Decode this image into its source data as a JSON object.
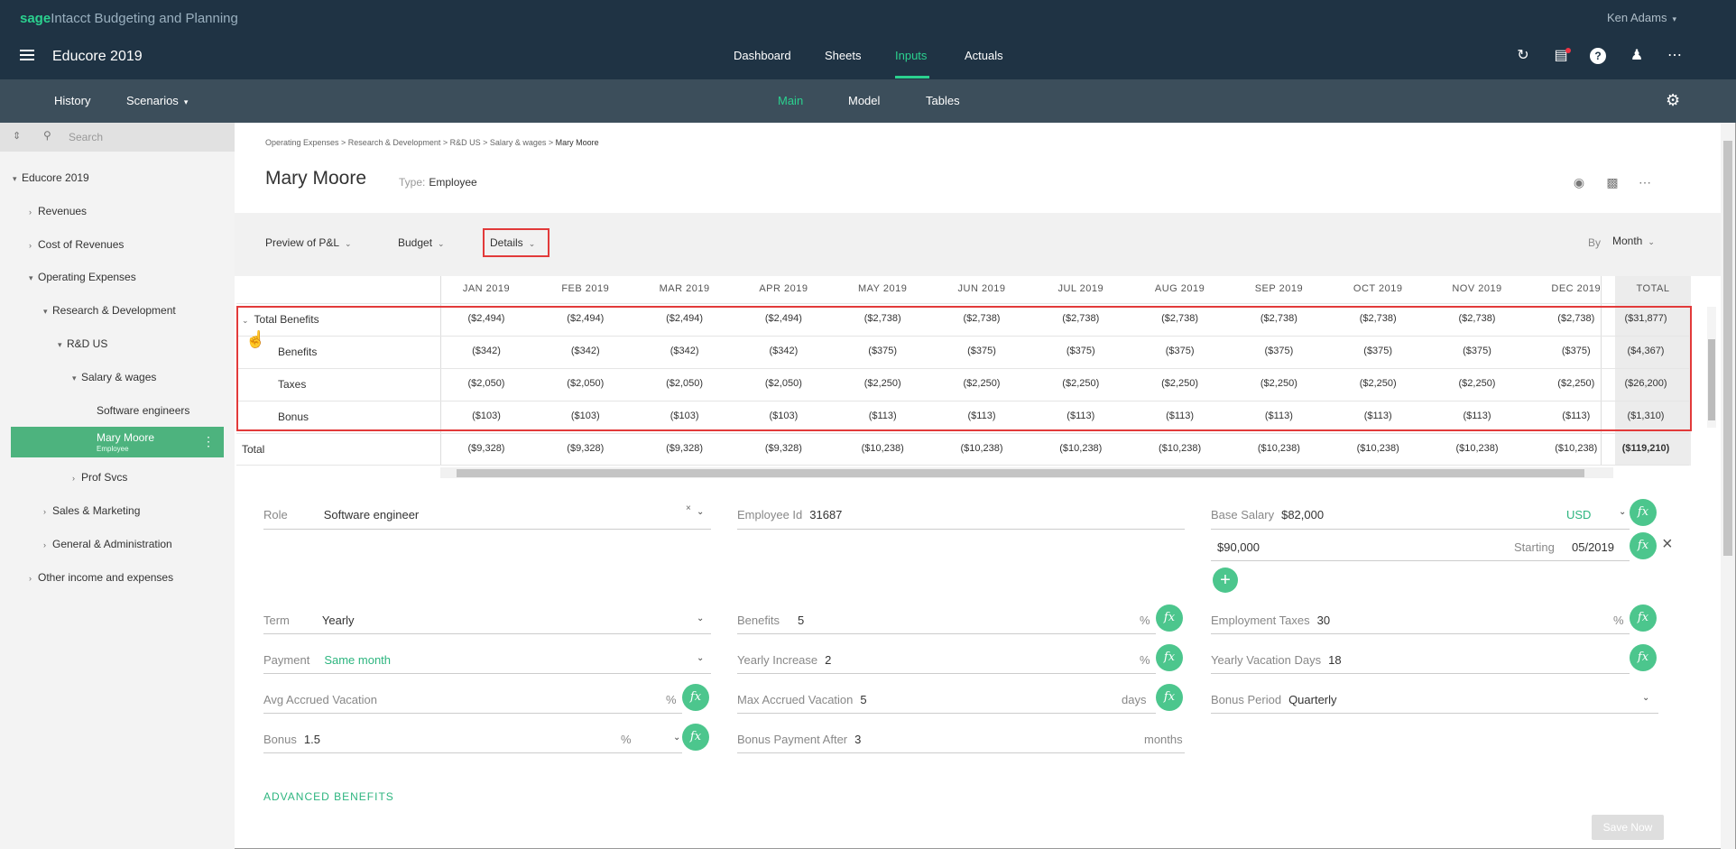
{
  "app": {
    "brand_sage": "sage",
    "brand_rest": "Intacct Budgeting and Planning",
    "user": "Ken Adams",
    "title": "Educore 2019"
  },
  "topnav": [
    "Dashboard",
    "Sheets",
    "Inputs",
    "Actuals"
  ],
  "subnav": {
    "history": "History",
    "scenarios": "Scenarios",
    "tabs": [
      "Main",
      "Model",
      "Tables"
    ]
  },
  "sidebar": {
    "search_placeholder": "Search",
    "items": [
      {
        "label": "Educore 2019",
        "level": 0
      },
      {
        "label": "Revenues",
        "level": 1
      },
      {
        "label": "Cost of Revenues",
        "level": 1
      },
      {
        "label": "Operating Expenses",
        "level": 1
      },
      {
        "label": "Research & Development",
        "level": 2
      },
      {
        "label": "R&D US",
        "level": 3
      },
      {
        "label": "Salary & wages",
        "level": 4
      },
      {
        "label": "Software engineers",
        "level": 5
      },
      {
        "label": "Mary Moore",
        "sub": "Employee",
        "level": 5
      },
      {
        "label": "Prof Svcs",
        "level": 4
      },
      {
        "label": "Sales & Marketing",
        "level": 2
      },
      {
        "label": "General & Administration",
        "level": 2
      },
      {
        "label": "Other income and expenses",
        "level": 1
      }
    ]
  },
  "breadcrumb": {
    "path": "Operating Expenses > Research & Development > R&D US > Salary & wages > ",
    "current": "Mary Moore"
  },
  "employee": {
    "name": "Mary Moore",
    "type_label": "Type:",
    "type": "Employee"
  },
  "view": {
    "preview": "Preview of P&L",
    "budget": "Budget",
    "details": "Details",
    "by": "By",
    "period": "Month"
  },
  "table": {
    "months": [
      "JAN 2019",
      "FEB 2019",
      "MAR 2019",
      "APR 2019",
      "MAY 2019",
      "JUN 2019",
      "JUL 2019",
      "AUG 2019",
      "SEP 2019",
      "OCT 2019",
      "NOV 2019",
      "DEC 2019"
    ],
    "total_header": "TOTAL",
    "rows": [
      {
        "label": "Total Benefits",
        "values": [
          "($2,494)",
          "($2,494)",
          "($2,494)",
          "($2,494)",
          "($2,738)",
          "($2,738)",
          "($2,738)",
          "($2,738)",
          "($2,738)",
          "($2,738)",
          "($2,738)",
          "($2,738)"
        ],
        "total": "($31,877)"
      },
      {
        "label": "Benefits",
        "values": [
          "($342)",
          "($342)",
          "($342)",
          "($342)",
          "($375)",
          "($375)",
          "($375)",
          "($375)",
          "($375)",
          "($375)",
          "($375)",
          "($375)"
        ],
        "total": "($4,367)"
      },
      {
        "label": "Taxes",
        "values": [
          "($2,050)",
          "($2,050)",
          "($2,050)",
          "($2,050)",
          "($2,250)",
          "($2,250)",
          "($2,250)",
          "($2,250)",
          "($2,250)",
          "($2,250)",
          "($2,250)",
          "($2,250)"
        ],
        "total": "($26,200)"
      },
      {
        "label": "Bonus",
        "values": [
          "($103)",
          "($103)",
          "($103)",
          "($103)",
          "($113)",
          "($113)",
          "($113)",
          "($113)",
          "($113)",
          "($113)",
          "($113)",
          "($113)"
        ],
        "total": "($1,310)"
      },
      {
        "label": "Total",
        "values": [
          "($9,328)",
          "($9,328)",
          "($9,328)",
          "($9,328)",
          "($10,238)",
          "($10,238)",
          "($10,238)",
          "($10,238)",
          "($10,238)",
          "($10,238)",
          "($10,238)",
          "($10,238)"
        ],
        "total": "($119,210)"
      }
    ]
  },
  "form": {
    "role": {
      "label": "Role",
      "value": "Software engineer"
    },
    "employee_id": {
      "label": "Employee Id",
      "value": "31687"
    },
    "base_salary": {
      "label": "Base Salary",
      "value": "$82,000",
      "currency": "USD"
    },
    "raise": {
      "value": "$90,000",
      "starting_label": "Starting",
      "starting": "05/2019"
    },
    "term": {
      "label": "Term",
      "value": "Yearly"
    },
    "benefits": {
      "label": "Benefits",
      "value": "5",
      "unit": "%"
    },
    "employment_taxes": {
      "label": "Employment Taxes",
      "value": "30",
      "unit": "%"
    },
    "payment": {
      "label": "Payment",
      "value": "Same month"
    },
    "yearly_increase": {
      "label": "Yearly Increase",
      "value": "2",
      "unit": "%"
    },
    "yearly_vacation": {
      "label": "Yearly Vacation Days",
      "value": "18"
    },
    "avg_accrued": {
      "label": "Avg Accrued Vacation",
      "value": "",
      "unit": "%"
    },
    "max_accrued": {
      "label": "Max Accrued Vacation",
      "value": "5",
      "unit": "days"
    },
    "bonus_period": {
      "label": "Bonus Period",
      "value": "Quarterly"
    },
    "bonus": {
      "label": "Bonus",
      "value": "1.5",
      "unit": "%"
    },
    "bonus_payment_after": {
      "label": "Bonus Payment After",
      "value": "3",
      "unit": "months"
    },
    "advanced": "ADVANCED BENEFITS",
    "fx": "fx",
    "save": "Save Now"
  }
}
